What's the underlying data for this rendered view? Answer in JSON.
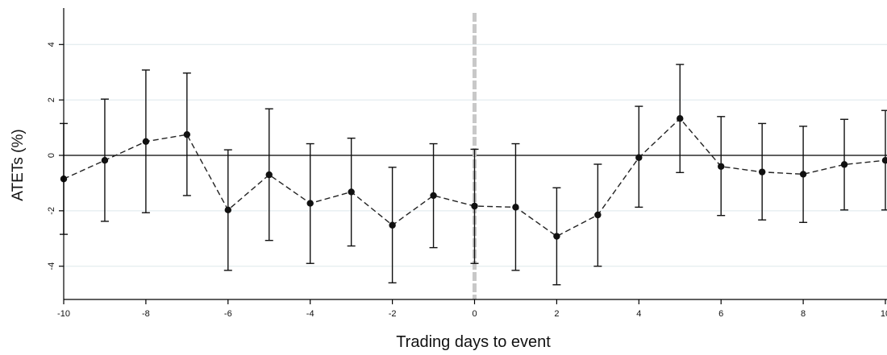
{
  "chart_data": {
    "type": "line",
    "xlabel": "Trading days to event",
    "ylabel": "ATETs (%)",
    "xlim": [
      -10,
      10
    ],
    "ylim": [
      -5.2,
      5.2
    ],
    "x_ticks": [
      -10,
      -8,
      -6,
      -4,
      -2,
      0,
      2,
      4,
      6,
      8,
      10
    ],
    "y_ticks": [
      -4,
      -2,
      0,
      2,
      4
    ],
    "tick_labels_x": [
      "-10",
      "-8",
      "-6",
      "-4",
      "-2",
      "0",
      "2",
      "4",
      "6",
      "8",
      "10"
    ],
    "tick_labels_y": [
      "-4",
      "-2",
      "0",
      "2",
      "4"
    ],
    "grid": true,
    "event_line_x": 0,
    "series": [
      {
        "x": [
          -10,
          -9,
          -8,
          -7,
          -6,
          -5,
          -4,
          -3,
          -2,
          -1,
          0,
          1,
          2,
          3,
          4,
          5,
          6,
          7,
          8,
          9,
          10
        ],
        "y": [
          -0.85,
          -0.18,
          0.5,
          0.75,
          -1.97,
          -0.7,
          -1.73,
          -1.32,
          -2.52,
          -1.45,
          -1.83,
          -1.87,
          -2.92,
          -2.15,
          -0.08,
          1.33,
          -0.4,
          -0.6,
          -0.68,
          -0.33,
          -0.18
        ],
        "lower": [
          -2.85,
          -2.38,
          -2.07,
          -1.45,
          -4.15,
          -3.07,
          -3.9,
          -3.27,
          -4.6,
          -3.33,
          -3.9,
          -4.15,
          -4.67,
          -4.0,
          -1.87,
          -0.62,
          -2.17,
          -2.33,
          -2.42,
          -1.97,
          -1.97
        ],
        "upper": [
          1.15,
          2.03,
          3.08,
          2.97,
          0.2,
          1.68,
          0.42,
          0.62,
          -0.43,
          0.42,
          0.22,
          0.42,
          -1.17,
          -0.32,
          1.77,
          3.28,
          1.4,
          1.15,
          1.05,
          1.3,
          1.62
        ]
      }
    ],
    "colors": {
      "line": "#222222",
      "marker": "#111111",
      "error_bar": "#111111",
      "event_line": "#c8c8c8",
      "grid": "#dde8ec",
      "zero_line": "#000000"
    }
  }
}
